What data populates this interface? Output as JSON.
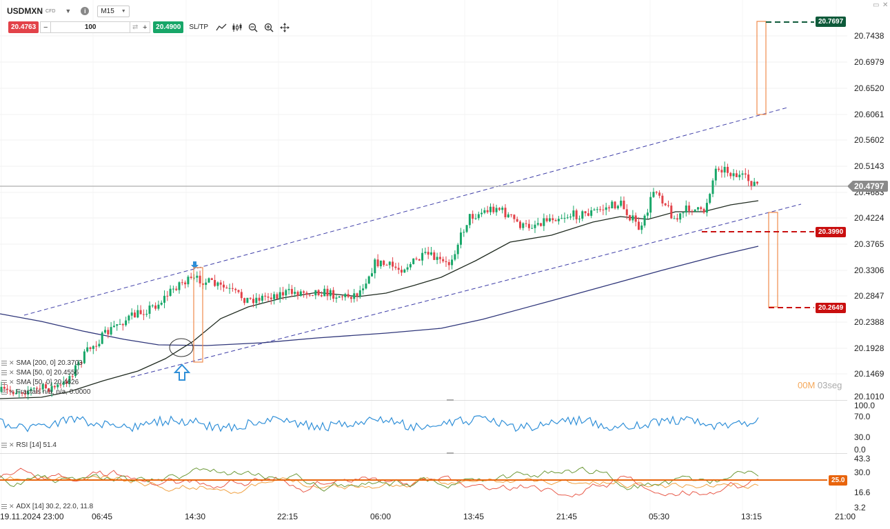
{
  "header": {
    "symbol": "USDMXN",
    "instrument_type": "CFD",
    "timeframe": "M15"
  },
  "trade": {
    "sell_price": "20.4763",
    "buy_price": "20.4900",
    "quantity": "100",
    "sltp_label": "SL/TP"
  },
  "icons": {
    "caret": "▼",
    "info": "i",
    "minus": "−",
    "plus": "+",
    "swap": "⇄",
    "minimize": "▭",
    "close": "✕"
  },
  "price_axis": [
    "20.7438",
    "20.6979",
    "20.6520",
    "20.6061",
    "20.5602",
    "20.5143",
    "20.4683",
    "20.4224",
    "20.3765",
    "20.3306",
    "20.2847",
    "20.2388",
    "20.1928",
    "20.1469",
    "20.1010"
  ],
  "price_tags": {
    "current": "20.4797",
    "take_profit_top": "20.7697",
    "stop_loss": "20.3990",
    "target_low": "20.2649"
  },
  "indicators": {
    "sma200": "SMA [200, 0] 20.3703",
    "sma50": "SMA [50, 0] 20.4556",
    "sma50b": "SMA [50, 0] 20.4626",
    "extra": "Fractals n/a, n/a, 0.0000"
  },
  "rsi": {
    "label": "RSI [14] 51.4",
    "axis": [
      "100.0",
      "70.0",
      "30.0",
      "0.0"
    ]
  },
  "adx": {
    "label": "ADX [14] 30.2, 22.0, 11.8",
    "axis": [
      "43.3",
      "30.0",
      "16.6",
      "3.2"
    ],
    "level_tag": "25.0"
  },
  "time_axis": [
    "19.11.2024 23:00",
    "06:45",
    "14:30",
    "22:15",
    "06:00",
    "13:45",
    "21:45",
    "05:30",
    "13:15",
    "21:00"
  ],
  "countdown": {
    "minutes": "00M",
    "seconds": "03seg"
  },
  "colors": {
    "bull": "#17a668",
    "bear": "#e24249",
    "channel": "#3f3fa8",
    "sma50": "#1f2a1f",
    "sma200": "#2e3579",
    "box": "#f08a4b",
    "rsi": "#2f8fd8",
    "adx_level": "#e8640c",
    "tp_tag": "#0e5a3a",
    "sl_tag": "#c90f0f",
    "current_tag": "#8a8a8a"
  }
}
